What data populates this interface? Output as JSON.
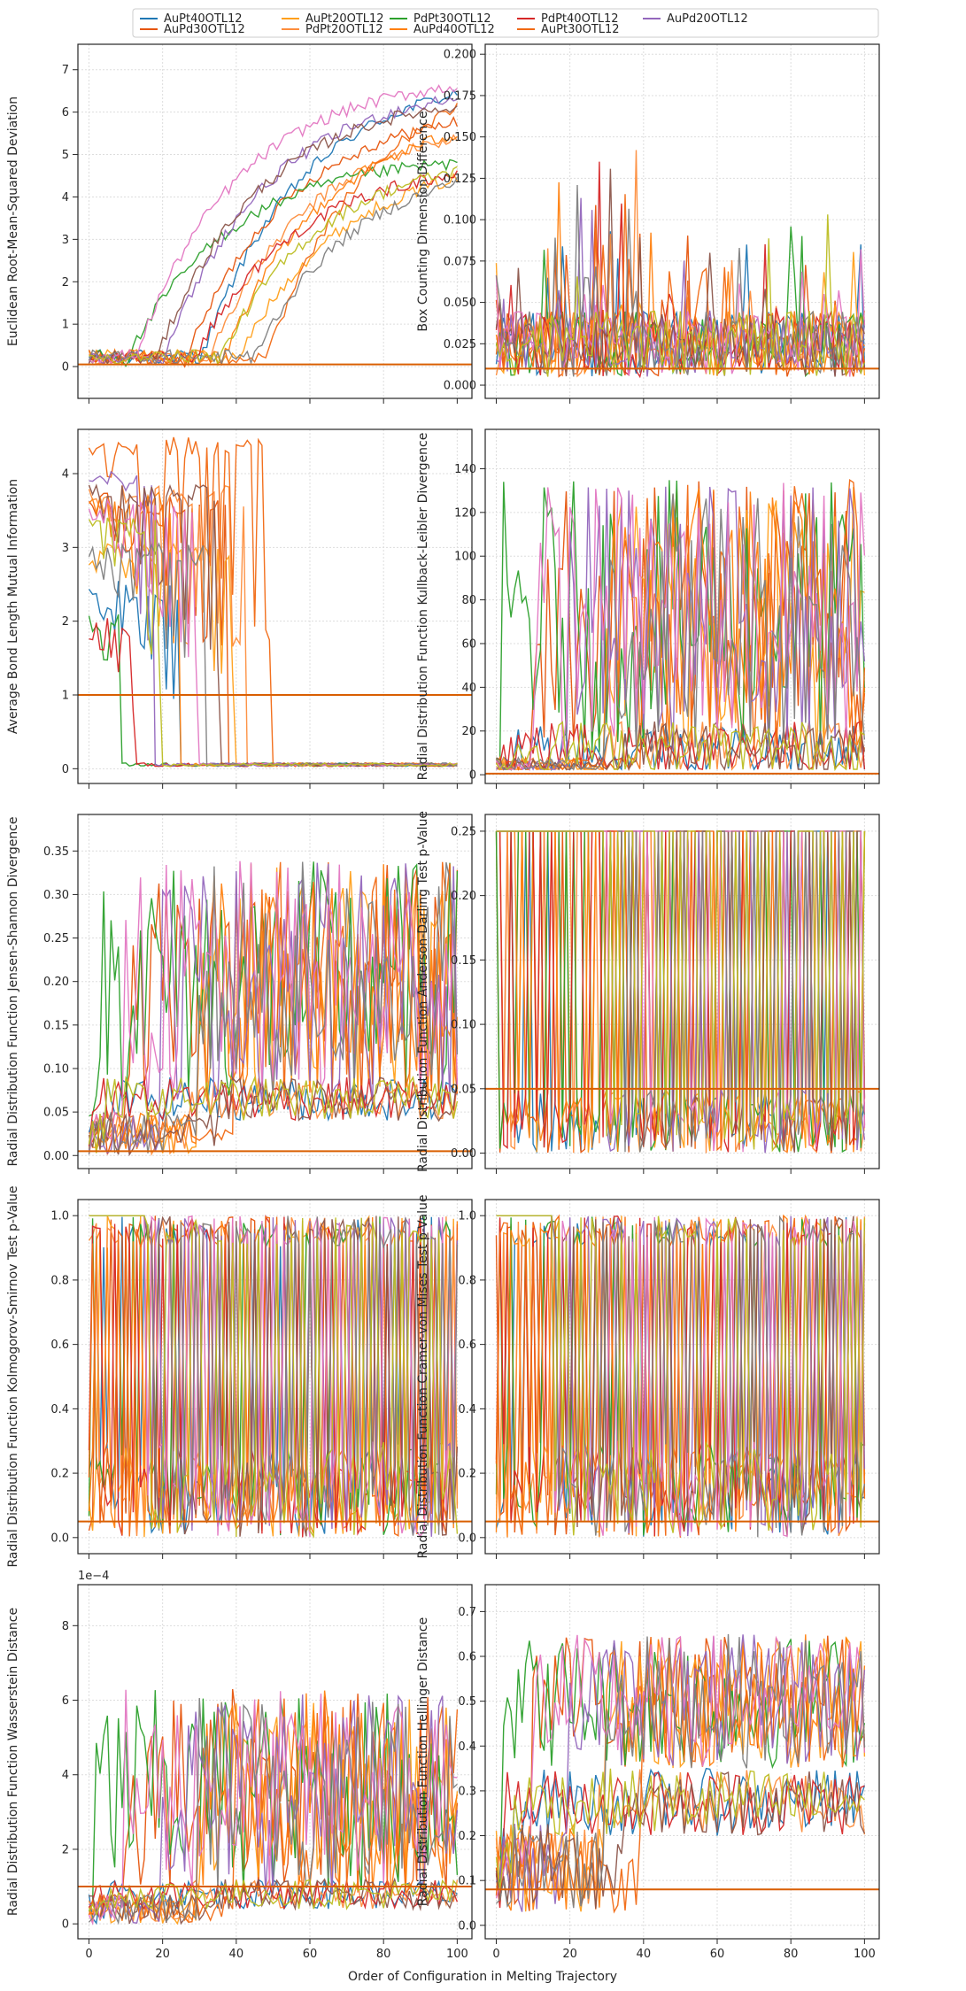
{
  "figure": {
    "xlabel": "Order of Configuration in Melting Trajectory",
    "legend": {
      "placement": "top-center",
      "entries": [
        {
          "name": "AuPt40OTL12",
          "color": "#1f77b4"
        },
        {
          "name": "AuPd30OTL12",
          "color": "#e6550d"
        },
        {
          "name": "AuPt20OTL12",
          "color": "#ff9f1a"
        },
        {
          "name": "PdPt20OTL12",
          "color": "#fd8d3c"
        },
        {
          "name": "PdPt30OTL12",
          "color": "#2ca02c"
        },
        {
          "name": "AuPd40OTL12",
          "color": "#ff7f0e"
        },
        {
          "name": "PdPt40OTL12",
          "color": "#d62728"
        },
        {
          "name": "AuPt30OTL12",
          "color": "#f16913"
        },
        {
          "name": "AuPd20OTL12",
          "color": "#9467bd"
        }
      ]
    },
    "extra_line_colors": [
      "#8c564b",
      "#e377c2",
      "#7f7f7f",
      "#bcbd22"
    ],
    "threshold_color": "#d95f02"
  },
  "chart_data": [
    {
      "type": "line",
      "ylabel": "Euclidean Root-Mean-Squared Deviation",
      "xlim": [
        -3,
        104
      ],
      "ylim": [
        -0.75,
        7.6
      ],
      "xticks": [
        0,
        20,
        40,
        60,
        80,
        100
      ],
      "yticks": [
        0,
        1,
        2,
        3,
        4,
        5,
        6,
        7
      ],
      "yticklabels": [
        "0",
        "1",
        "2",
        "3",
        "4",
        "5",
        "6",
        "7"
      ],
      "threshold": 0.05,
      "grid": true,
      "pattern": "rmsd"
    },
    {
      "type": "line",
      "ylabel": "Box Counting Dimension Difference",
      "xlim": [
        -3,
        104
      ],
      "ylim": [
        -0.008,
        0.206
      ],
      "xticks": [
        0,
        20,
        40,
        60,
        80,
        100
      ],
      "yticks": [
        0,
        0.025,
        0.05,
        0.075,
        0.1,
        0.125,
        0.15,
        0.175,
        0.2
      ],
      "yticklabels": [
        "0.000",
        "0.025",
        "0.050",
        "0.075",
        "0.100",
        "0.125",
        "0.150",
        "0.175",
        "0.200"
      ],
      "threshold": 0.01,
      "grid": true,
      "pattern": "box"
    },
    {
      "type": "line",
      "ylabel": "Average Bond Length Mutual Information",
      "xlim": [
        -3,
        104
      ],
      "ylim": [
        -0.2,
        4.6
      ],
      "xticks": [
        0,
        20,
        40,
        60,
        80,
        100
      ],
      "yticks": [
        0,
        1,
        2,
        3,
        4
      ],
      "yticklabels": [
        "0",
        "1",
        "2",
        "3",
        "4"
      ],
      "threshold": 1.0,
      "grid": true,
      "pattern": "bond"
    },
    {
      "type": "line",
      "ylabel": "Radial Distribution Function Kullback-Leibler Divergence",
      "xlim": [
        -3,
        104
      ],
      "ylim": [
        -4,
        158
      ],
      "xticks": [
        0,
        20,
        40,
        60,
        80,
        100
      ],
      "yticks": [
        0,
        20,
        40,
        60,
        80,
        100,
        120,
        140
      ],
      "yticklabels": [
        "0",
        "20",
        "40",
        "60",
        "80",
        "100",
        "120",
        "140"
      ],
      "threshold": 0.5,
      "grid": true,
      "pattern": "kl"
    },
    {
      "type": "line",
      "ylabel": "Radial Distribution Function Jensen-Shannon Divergence",
      "xlim": [
        -3,
        104
      ],
      "ylim": [
        -0.015,
        0.392
      ],
      "xticks": [
        0,
        20,
        40,
        60,
        80,
        100
      ],
      "yticks": [
        0,
        0.05,
        0.1,
        0.15,
        0.2,
        0.25,
        0.3,
        0.35
      ],
      "yticklabels": [
        "0.00",
        "0.05",
        "0.10",
        "0.15",
        "0.20",
        "0.25",
        "0.30",
        "0.35"
      ],
      "threshold": 0.005,
      "grid": true,
      "pattern": "js"
    },
    {
      "type": "line",
      "ylabel": "Radial Distribution Function Anderson-Darling Test p-Value",
      "xlim": [
        -3,
        104
      ],
      "ylim": [
        -0.012,
        0.263
      ],
      "xticks": [
        0,
        20,
        40,
        60,
        80,
        100
      ],
      "yticks": [
        0,
        0.05,
        0.1,
        0.15,
        0.2,
        0.25
      ],
      "yticklabels": [
        "0.00",
        "0.05",
        "0.10",
        "0.15",
        "0.20",
        "0.25"
      ],
      "threshold": 0.05,
      "grid": true,
      "pattern": "ad"
    },
    {
      "type": "line",
      "ylabel": "Radial Distribution Function Kolmogorov-Smirnov Test p-Value",
      "xlim": [
        -3,
        104
      ],
      "ylim": [
        -0.05,
        1.05
      ],
      "xticks": [
        0,
        20,
        40,
        60,
        80,
        100
      ],
      "yticks": [
        0,
        0.2,
        0.4,
        0.6,
        0.8,
        1.0
      ],
      "yticklabels": [
        "0.0",
        "0.2",
        "0.4",
        "0.6",
        "0.8",
        "1.0"
      ],
      "threshold": 0.05,
      "grid": true,
      "pattern": "pval"
    },
    {
      "type": "line",
      "ylabel": "Radial Distribution Function Cramer-von Mises Test p-Value",
      "xlim": [
        -3,
        104
      ],
      "ylim": [
        -0.05,
        1.05
      ],
      "xticks": [
        0,
        20,
        40,
        60,
        80,
        100
      ],
      "yticks": [
        0,
        0.2,
        0.4,
        0.6,
        0.8,
        1.0
      ],
      "yticklabels": [
        "0.0",
        "0.2",
        "0.4",
        "0.6",
        "0.8",
        "1.0"
      ],
      "threshold": 0.05,
      "grid": true,
      "pattern": "pval"
    },
    {
      "type": "line",
      "ylabel": "Radial Distribution Function Wasserstein Distance",
      "xlim": [
        -3,
        104
      ],
      "ylim": [
        -4e-05,
        0.00091
      ],
      "offset_text": "1e−4",
      "xticks": [
        0,
        20,
        40,
        60,
        80,
        100
      ],
      "yticks": [
        0,
        0.0002,
        0.0004,
        0.0006,
        0.0008
      ],
      "yticklabels": [
        "0",
        "2",
        "4",
        "6",
        "8"
      ],
      "threshold": 0.0001,
      "grid": true,
      "pattern": "wass"
    },
    {
      "type": "line",
      "ylabel": "Radial Distribution Function Hellinger Distance",
      "xlim": [
        -3,
        104
      ],
      "ylim": [
        -0.03,
        0.76
      ],
      "xticks": [
        0,
        20,
        40,
        60,
        80,
        100
      ],
      "yticks": [
        0,
        0.1,
        0.2,
        0.3,
        0.4,
        0.5,
        0.6,
        0.7
      ],
      "yticklabels": [
        "0.0",
        "0.1",
        "0.2",
        "0.3",
        "0.4",
        "0.5",
        "0.6",
        "0.7"
      ],
      "threshold": 0.08,
      "grid": true,
      "pattern": "hell"
    }
  ]
}
